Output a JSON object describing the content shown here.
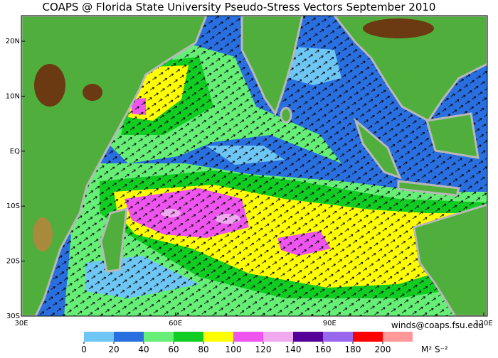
{
  "title": "COAPS @ Florida State University Pseudo-Stress Vectors September 2010",
  "map": {
    "lat_labels": [
      "20N",
      "10N",
      "EQ",
      "10S",
      "20S",
      "30S"
    ],
    "lon_labels": [
      "30E",
      "60E",
      "90E",
      "120E"
    ]
  },
  "credit": "winds@coaps.fsu.edu",
  "colorbar": {
    "ticks": [
      0,
      20,
      40,
      60,
      80,
      100,
      120,
      140,
      160,
      180,
      200
    ],
    "colors": [
      "#6ec6f5",
      "#2a6fe0",
      "#66ee77",
      "#11cc22",
      "#ffff00",
      "#ee55ee",
      "#f0a8f0",
      "#550099",
      "#9966ee",
      "#ff0000",
      "#ff9999"
    ],
    "units": "M² S⁻²"
  }
}
